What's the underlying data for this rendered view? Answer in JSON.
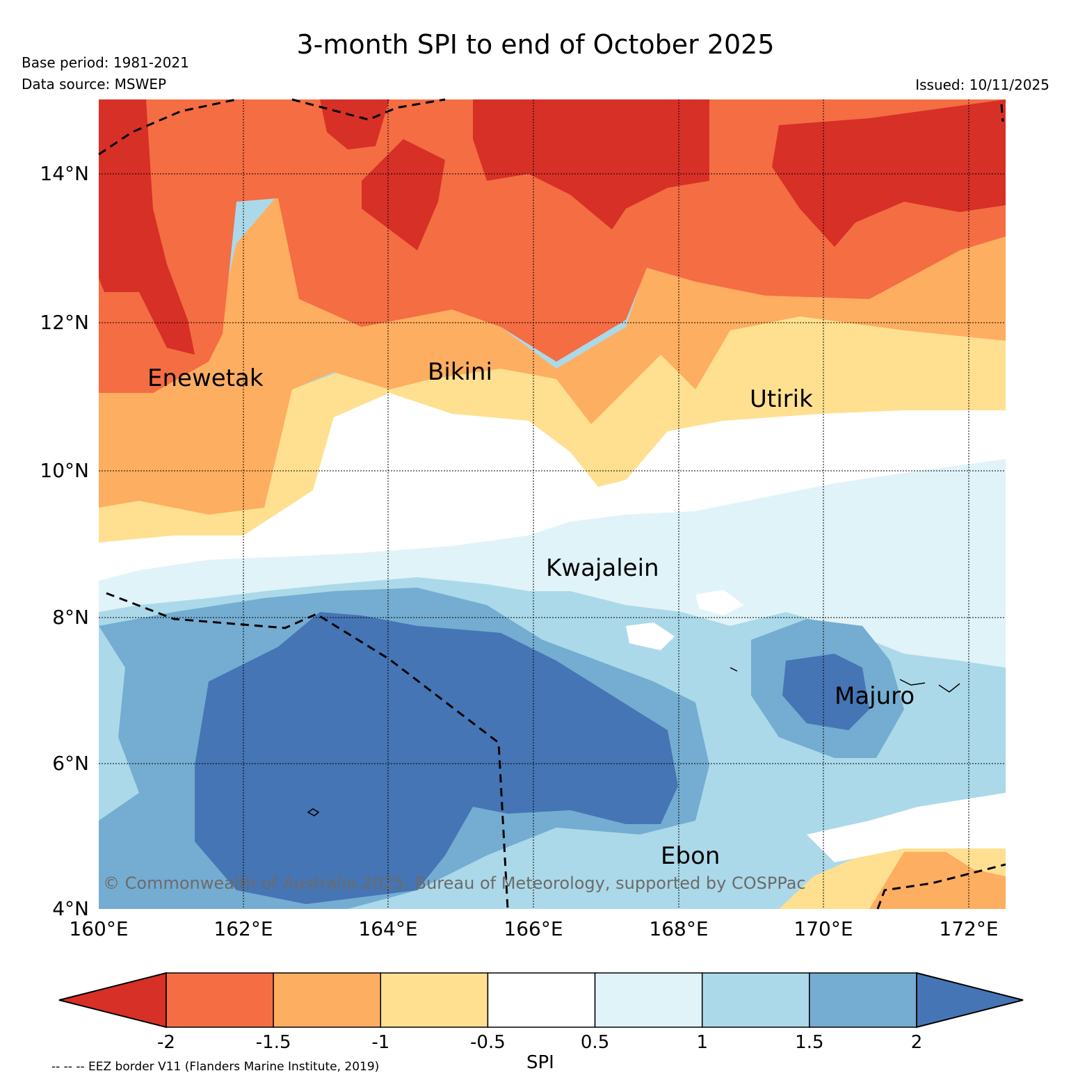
{
  "title": "3-month SPI to end of October 2025",
  "base_period": "Base period: 1981-2021",
  "data_source": "Data source: MSWEP",
  "issued": "Issued: 10/11/2025",
  "copyright": "© Commonwealth of Australia 2025, Bureau of Meteorology, supported by COSPPac",
  "eez_note": "-- -- -- EEZ border V11 (Flanders Marine Institute, 2019)",
  "colorbar": {
    "label": "SPI",
    "ticks": [
      "-2",
      "-1.5",
      "-1",
      "-0.5",
      "0.5",
      "1",
      "1.5",
      "2"
    ],
    "colors": [
      "#d73027",
      "#f46d43",
      "#fdae61",
      "#fee090",
      "#ffffff",
      "#e0f3f8",
      "#abd9e9",
      "#74add1",
      "#4575b4"
    ]
  },
  "map": {
    "lat_ticks": [
      "14°N",
      "12°N",
      "10°N",
      "8°N",
      "6°N",
      "4°N"
    ],
    "lon_ticks": [
      "160°E",
      "162°E",
      "164°E",
      "166°E",
      "168°E",
      "170°E",
      "172°E"
    ],
    "places": [
      "Enewetak",
      "Bikini",
      "Utirik",
      "Kwajalein",
      "Majuro",
      "Ebon"
    ]
  }
}
